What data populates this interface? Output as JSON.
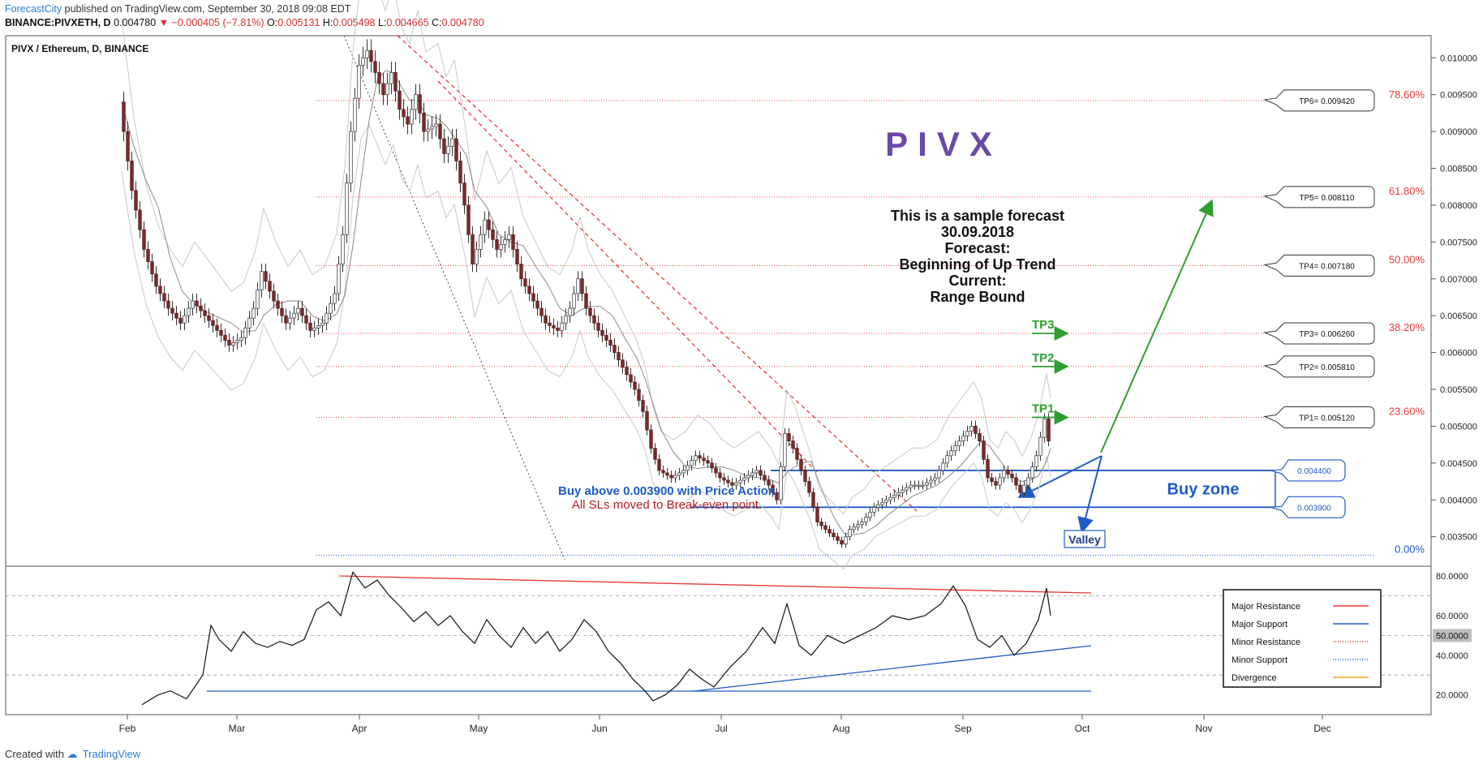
{
  "header": {
    "brand": "ForecastCity",
    "published": "published on TradingView.com, September 30, 2018 09:08 EDT",
    "symbol": "BINANCE:PIVXETH, D",
    "last": "0.004780",
    "change": "−0.000405 (−7.81%)",
    "o_label": "O:",
    "o": "0.005131",
    "h_label": "H:",
    "h": "0.005498",
    "l_label": "L:",
    "l": "0.004665",
    "c_label": "C:",
    "c": "0.004780"
  },
  "footer": {
    "created_with": "Created with",
    "brand": "TradingView"
  },
  "colors": {
    "resistance": "#e53935",
    "support": "#1e5bc6",
    "target": "#2e9e2e",
    "title": "#6a4aa8",
    "candle_up": "#555555",
    "candle_down": "#7b2a2a"
  },
  "chart_data": {
    "type": "candlestick",
    "title": "PIVX / Ethereum, D, BINANCE",
    "x_ticks": [
      "Feb",
      "Mar",
      "Apr",
      "May",
      "Jun",
      "Jul",
      "Aug",
      "Sep",
      "Oct",
      "Nov",
      "Dec"
    ],
    "y_ticks": [
      "0.010000",
      "0.009500",
      "0.009000",
      "0.008500",
      "0.008000",
      "0.007500",
      "0.007000",
      "0.006500",
      "0.006000",
      "0.005500",
      "0.005000",
      "0.004500",
      "0.004000",
      "0.003500"
    ],
    "y_range": [
      0.0031,
      0.0103
    ],
    "x_range_days": [
      0,
      335
    ],
    "series": [
      {
        "name": "price",
        "points": [
          [
            0,
            0.0094
          ],
          [
            3,
            0.0082
          ],
          [
            6,
            0.0074
          ],
          [
            9,
            0.0069
          ],
          [
            12,
            0.0066
          ],
          [
            15,
            0.0064
          ],
          [
            18,
            0.0067
          ],
          [
            21,
            0.0065
          ],
          [
            24,
            0.0063
          ],
          [
            27,
            0.0061
          ],
          [
            30,
            0.0062
          ],
          [
            33,
            0.0066
          ],
          [
            35,
            0.0071
          ],
          [
            38,
            0.0067
          ],
          [
            41,
            0.0064
          ],
          [
            44,
            0.0066
          ],
          [
            47,
            0.0063
          ],
          [
            50,
            0.0064
          ],
          [
            53,
            0.0068
          ],
          [
            55,
            0.0076
          ],
          [
            57,
            0.009
          ],
          [
            59,
            0.0099
          ],
          [
            61,
            0.0101
          ],
          [
            63,
            0.0098
          ],
          [
            65,
            0.0095
          ],
          [
            67,
            0.0098
          ],
          [
            69,
            0.0093
          ],
          [
            71,
            0.0091
          ],
          [
            73,
            0.0095
          ],
          [
            75,
            0.009
          ],
          [
            78,
            0.0091
          ],
          [
            80,
            0.0087
          ],
          [
            82,
            0.0089
          ],
          [
            85,
            0.008
          ],
          [
            87,
            0.0072
          ],
          [
            90,
            0.0078
          ],
          [
            93,
            0.0074
          ],
          [
            96,
            0.0076
          ],
          [
            99,
            0.007
          ],
          [
            102,
            0.0067
          ],
          [
            105,
            0.0064
          ],
          [
            108,
            0.0063
          ],
          [
            111,
            0.0066
          ],
          [
            113,
            0.007
          ],
          [
            115,
            0.0066
          ],
          [
            118,
            0.0063
          ],
          [
            121,
            0.0061
          ],
          [
            124,
            0.0058
          ],
          [
            127,
            0.0055
          ],
          [
            129,
            0.0052
          ],
          [
            131,
            0.0047
          ],
          [
            133,
            0.0044
          ],
          [
            136,
            0.0043
          ],
          [
            139,
            0.0044
          ],
          [
            142,
            0.0046
          ],
          [
            145,
            0.0045
          ],
          [
            148,
            0.0043
          ],
          [
            151,
            0.0042
          ],
          [
            154,
            0.0043
          ],
          [
            157,
            0.0044
          ],
          [
            160,
            0.0042
          ],
          [
            162,
            0.004
          ],
          [
            164,
            0.0049
          ],
          [
            166,
            0.0047
          ],
          [
            168,
            0.0044
          ],
          [
            170,
            0.0041
          ],
          [
            172,
            0.0037
          ],
          [
            174,
            0.0036
          ],
          [
            176,
            0.0035
          ],
          [
            178,
            0.0034
          ],
          [
            180,
            0.0036
          ],
          [
            183,
            0.0037
          ],
          [
            186,
            0.0039
          ],
          [
            189,
            0.004
          ],
          [
            192,
            0.0041
          ],
          [
            195,
            0.0042
          ],
          [
            198,
            0.0042
          ],
          [
            201,
            0.0043
          ],
          [
            204,
            0.0046
          ],
          [
            207,
            0.0048
          ],
          [
            210,
            0.005
          ],
          [
            212,
            0.0048
          ],
          [
            214,
            0.0043
          ],
          [
            216,
            0.0042
          ],
          [
            218,
            0.0044
          ],
          [
            220,
            0.0043
          ],
          [
            222,
            0.0041
          ],
          [
            224,
            0.0043
          ],
          [
            226,
            0.0046
          ],
          [
            228,
            0.0051
          ],
          [
            229,
            0.0048
          ]
        ]
      },
      {
        "name": "RSI",
        "points": [
          [
            5,
            15
          ],
          [
            9,
            20
          ],
          [
            12,
            22
          ],
          [
            16,
            18
          ],
          [
            20,
            30
          ],
          [
            22,
            55
          ],
          [
            24,
            48
          ],
          [
            27,
            42
          ],
          [
            30,
            52
          ],
          [
            33,
            46
          ],
          [
            36,
            44
          ],
          [
            39,
            47
          ],
          [
            42,
            45
          ],
          [
            45,
            48
          ],
          [
            48,
            63
          ],
          [
            51,
            67
          ],
          [
            54,
            60
          ],
          [
            57,
            82
          ],
          [
            60,
            74
          ],
          [
            63,
            78
          ],
          [
            66,
            70
          ],
          [
            69,
            64
          ],
          [
            72,
            57
          ],
          [
            75,
            62
          ],
          [
            78,
            55
          ],
          [
            81,
            60
          ],
          [
            84,
            52
          ],
          [
            87,
            46
          ],
          [
            90,
            58
          ],
          [
            93,
            50
          ],
          [
            96,
            44
          ],
          [
            99,
            54
          ],
          [
            102,
            46
          ],
          [
            105,
            52
          ],
          [
            108,
            42
          ],
          [
            111,
            48
          ],
          [
            114,
            58
          ],
          [
            117,
            52
          ],
          [
            120,
            42
          ],
          [
            123,
            36
          ],
          [
            126,
            28
          ],
          [
            129,
            22
          ],
          [
            131,
            17
          ],
          [
            134,
            20
          ],
          [
            137,
            25
          ],
          [
            140,
            33
          ],
          [
            143,
            28
          ],
          [
            146,
            24
          ],
          [
            150,
            34
          ],
          [
            154,
            42
          ],
          [
            158,
            54
          ],
          [
            161,
            46
          ],
          [
            164,
            66
          ],
          [
            167,
            45
          ],
          [
            170,
            40
          ],
          [
            174,
            50
          ],
          [
            178,
            46
          ],
          [
            182,
            50
          ],
          [
            186,
            54
          ],
          [
            190,
            60
          ],
          [
            194,
            58
          ],
          [
            198,
            60
          ],
          [
            202,
            66
          ],
          [
            205,
            75
          ],
          [
            208,
            65
          ],
          [
            211,
            48
          ],
          [
            214,
            44
          ],
          [
            217,
            50
          ],
          [
            220,
            40
          ],
          [
            223,
            46
          ],
          [
            226,
            58
          ],
          [
            228,
            74
          ],
          [
            229,
            60
          ]
        ]
      }
    ],
    "levels": [
      {
        "label": "TP6= 0.009420",
        "pct": "78.60%",
        "value": 0.00942
      },
      {
        "label": "TP5= 0.008110",
        "pct": "61.80%",
        "value": 0.00811
      },
      {
        "label": "TP4= 0.007180",
        "pct": "50.00%",
        "value": 0.00718
      },
      {
        "label": "TP3= 0.006260",
        "pct": "38.20%",
        "value": 0.00626
      },
      {
        "label": "TP2= 0.005810",
        "value": 0.00581
      },
      {
        "label": "TP1= 0.005120",
        "pct": "23.60%",
        "value": 0.00512
      },
      {
        "pct": "0.00%",
        "value": 0.00325
      }
    ],
    "buy_zone": {
      "label": "Buy zone",
      "top": "0.004400",
      "bottom": "0.003900",
      "top_value": 0.0044,
      "bottom_value": 0.0039
    },
    "tp_markers": [
      "TP1",
      "TP2",
      "TP3"
    ],
    "valley_label": "Valley",
    "pivx_label": "PIVX",
    "forecast_lines": [
      "This is a sample forecast",
      "30.09.2018",
      "Forecast:",
      "Beginning of Up Trend",
      "Current:",
      "Range Bound"
    ],
    "buy_note": "Buy above 0.003900 with Price Action",
    "sl_note": "All SLs moved to Break-even point.",
    "rsi": {
      "y_ticks": [
        "80.0000",
        "60.0000",
        "50.0000",
        "40.0000",
        "20.0000"
      ],
      "y_range": [
        10,
        85
      ],
      "current": "50.0000"
    },
    "legend": [
      "Major Resistance",
      "Major Support",
      "Minor Resistance",
      "Minor Support",
      "Divergence"
    ]
  }
}
